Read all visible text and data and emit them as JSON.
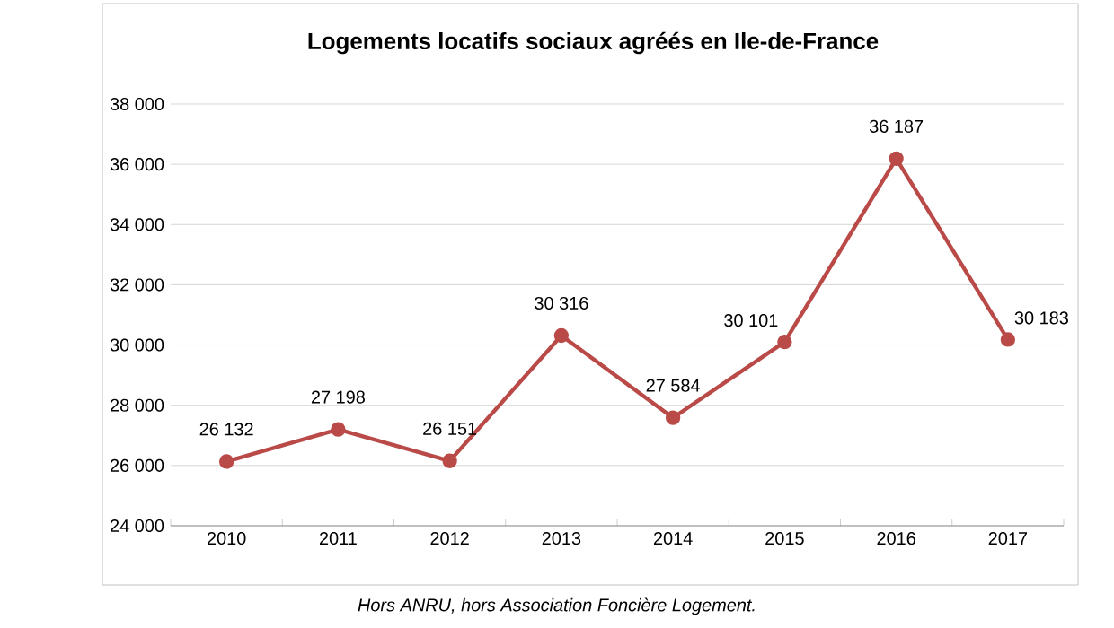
{
  "chart_data": {
    "type": "line",
    "title": "Logements locatifs sociaux agréés en Ile-de-France",
    "categories": [
      "2010",
      "2011",
      "2012",
      "2013",
      "2014",
      "2015",
      "2016",
      "2017"
    ],
    "series": [
      {
        "color": "#b94a48",
        "values": [
          26132,
          27198,
          26151,
          30316,
          27584,
          30101,
          36187,
          30183
        ],
        "value_labels": [
          "26 132",
          "27 198",
          "26 151",
          "30 316",
          "27 584",
          "30 101",
          "36 187",
          "30 183"
        ]
      }
    ],
    "ylim": [
      24000,
      38000
    ],
    "yticks": [
      {
        "value": 24000,
        "label": "24 000"
      },
      {
        "value": 26000,
        "label": "26 000"
      },
      {
        "value": 28000,
        "label": "28 000"
      },
      {
        "value": 30000,
        "label": "30 000"
      },
      {
        "value": 32000,
        "label": "32 000"
      },
      {
        "value": 34000,
        "label": "34 000"
      },
      {
        "value": 36000,
        "label": "36 000"
      },
      {
        "value": 38000,
        "label": "38 000"
      }
    ],
    "grid": "y",
    "marker": "circle",
    "line_style": "solid",
    "annotations": [
      "Hors ANRU, hors Association Foncière Logement."
    ]
  }
}
